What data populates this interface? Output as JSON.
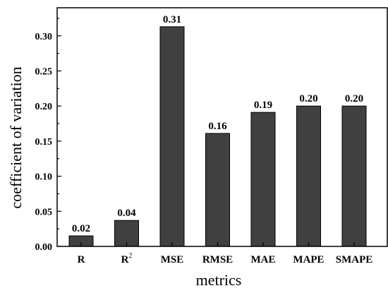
{
  "chart_data": {
    "type": "bar",
    "categories": [
      "R",
      "R",
      "MSE",
      "RMSE",
      "MAE",
      "MAPE",
      "SMAPE"
    ],
    "category_superscripts": [
      "",
      "2",
      "",
      "",
      "",
      "",
      ""
    ],
    "values": [
      0.015,
      0.037,
      0.313,
      0.161,
      0.191,
      0.2,
      0.2
    ],
    "value_labels": [
      "0.02",
      "0.04",
      "0.31",
      "0.16",
      "0.19",
      "0.20",
      "0.20"
    ],
    "xlabel": "metrics",
    "ylabel": "coefficient of variation",
    "ylim": [
      0,
      0.34
    ],
    "yticks": [
      0.0,
      0.05,
      0.1,
      0.15,
      0.2,
      0.25,
      0.3
    ],
    "ytick_labels": [
      "0.00",
      "0.05",
      "0.10",
      "0.15",
      "0.20",
      "0.25",
      "0.30"
    ],
    "grid": false,
    "bar_color": "#404040",
    "bar_edge_color": "#000000"
  }
}
